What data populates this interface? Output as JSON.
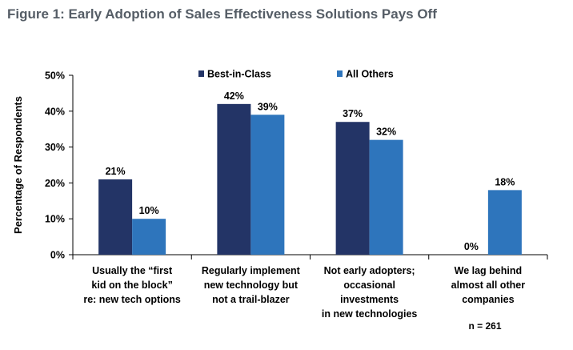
{
  "figure_title": "Figure 1: Early Adoption of Sales Effectiveness Solutions Pays Off",
  "colors": {
    "best_in_class": "#233466",
    "all_others": "#2e75bc",
    "axis": "#000000",
    "title": "#555d66"
  },
  "chart_data": {
    "type": "bar",
    "ylabel": "Percentage of Respondents",
    "ylim": [
      0,
      50
    ],
    "y_ticks": [
      "0%",
      "10%",
      "20%",
      "30%",
      "40%",
      "50%"
    ],
    "y_tick_values": [
      0,
      10,
      20,
      30,
      40,
      50
    ],
    "categories": [
      [
        "Usually the “first",
        "kid on the block”",
        "re: new tech options"
      ],
      [
        "Regularly implement",
        "new technology but",
        "not a trail-blazer"
      ],
      [
        "Not early adopters;",
        "occasional",
        "investments",
        "in new technologies"
      ],
      [
        "We lag behind",
        "almost all other",
        "companies"
      ]
    ],
    "series": [
      {
        "name": "Best-in-Class",
        "values": [
          21,
          42,
          37,
          0
        ],
        "labels": [
          "21%",
          "42%",
          "37%",
          "0%"
        ]
      },
      {
        "name": "All Others",
        "values": [
          10,
          39,
          32,
          18
        ],
        "labels": [
          "10%",
          "39%",
          "32%",
          "18%"
        ]
      }
    ],
    "legend_position": "top",
    "note": "n = 261"
  }
}
